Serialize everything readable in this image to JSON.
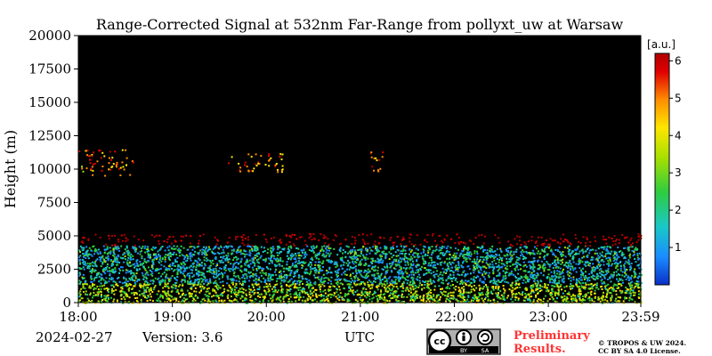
{
  "chart_data": {
    "type": "heatmap",
    "title": "Range-Corrected Signal at 532nm Far-Range from pollyxt_uw at Warsaw",
    "ylabel": "Height (m)",
    "xlabel": "UTC",
    "x_ticks": [
      "18:00",
      "19:00",
      "20:00",
      "21:00",
      "22:00",
      "23:00",
      "23:59"
    ],
    "x_range": [
      "18:00",
      "23:59"
    ],
    "y_ticks": [
      0,
      2500,
      5000,
      7500,
      10000,
      12500,
      15000,
      17500,
      20000
    ],
    "ylim": [
      0,
      20000
    ],
    "colorbar": {
      "unit_label": "[a.u.]",
      "ticks": [
        1,
        2,
        3,
        4,
        5,
        6
      ],
      "range": [
        0,
        6.2
      ],
      "colormap": [
        "#0a2fc8",
        "#1a8cff",
        "#19c8c8",
        "#2ecc40",
        "#a8e000",
        "#ffe600",
        "#ff8c00",
        "#e00000",
        "#b00000"
      ]
    },
    "layers": [
      {
        "name": "boundary-layer",
        "height_range_m": [
          0,
          1500
        ],
        "signal": 3.0
      },
      {
        "name": "residual-aerosol",
        "height_range_m": [
          1500,
          4300
        ],
        "signal": 1.8
      },
      {
        "name": "cloud-layer",
        "height_range_m": [
          4300,
          5200
        ],
        "signal": 6.0
      },
      {
        "name": "cirrus",
        "height_range_m": [
          9500,
          11500
        ],
        "time_range": [
          "18:00",
          "18:35"
        ],
        "signal": 4.5
      },
      {
        "name": "cirrus",
        "height_range_m": [
          9800,
          11200
        ],
        "time_range": [
          "19:35",
          "20:10"
        ],
        "signal": 4.5
      },
      {
        "name": "cirrus",
        "height_range_m": [
          9800,
          11500
        ],
        "time_range": [
          "21:05",
          "21:15"
        ],
        "signal": 5.0
      }
    ]
  },
  "footer": {
    "date": "2024-02-27",
    "version": "Version: 3.6",
    "preliminary_line1": "Preliminary",
    "preliminary_line2": "Results.",
    "copyright_line1": "© TROPOS & UW 2024.",
    "copyright_line2": "CC BY SA 4.0 License.",
    "license_badge": {
      "cc": "cc",
      "by": "BY",
      "sa": "SA"
    }
  },
  "colors": {
    "plot_background": "#000000",
    "preliminary_text": "#ff3333"
  }
}
